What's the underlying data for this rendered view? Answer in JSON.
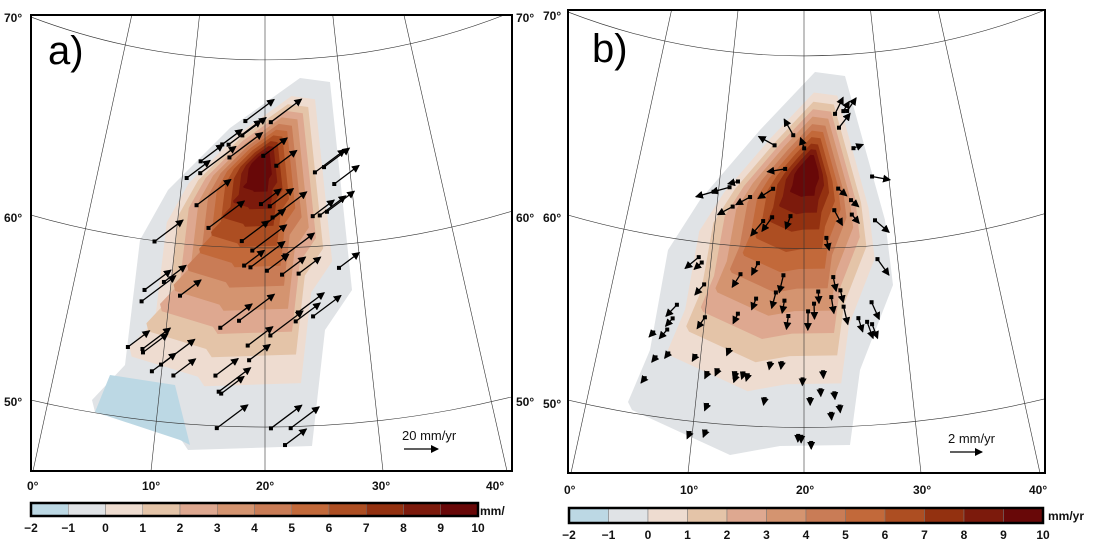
{
  "panels": [
    {
      "label": "a)",
      "lat_labels": [
        "70°",
        "60°",
        "50°"
      ],
      "lon_labels": [
        "0°",
        "10°",
        "20°",
        "30°",
        "40°"
      ],
      "scale_label": "20 mm/yr",
      "vector_style": "long north-east horizontal velocity arrows",
      "colorbar": {
        "ticks": [
          "−2",
          "−1",
          "0",
          "1",
          "2",
          "3",
          "4",
          "5",
          "6",
          "7",
          "8",
          "9",
          "10"
        ],
        "unit": "mm/"
      }
    },
    {
      "label": "b)",
      "lat_labels": [
        "70°",
        "60°",
        "50°"
      ],
      "lon_labels": [
        "0°",
        "10°",
        "20°",
        "30°",
        "40°"
      ],
      "scale_label": "2 mm/yr",
      "vector_style": "short residual arrows radiating from uplift centre",
      "colorbar": {
        "ticks": [
          "−2",
          "−1",
          "0",
          "1",
          "2",
          "3",
          "4",
          "5",
          "6",
          "7",
          "8",
          "9",
          "10"
        ],
        "unit": "mm/yr"
      }
    }
  ],
  "colors": [
    "#bcd8e4",
    "#e0e3e6",
    "#eedcd0",
    "#e4c4a8",
    "#dea890",
    "#d49470",
    "#c97c56",
    "#c2693a",
    "#ad4e22",
    "#933110",
    "#7c1a0c",
    "#680808"
  ]
}
